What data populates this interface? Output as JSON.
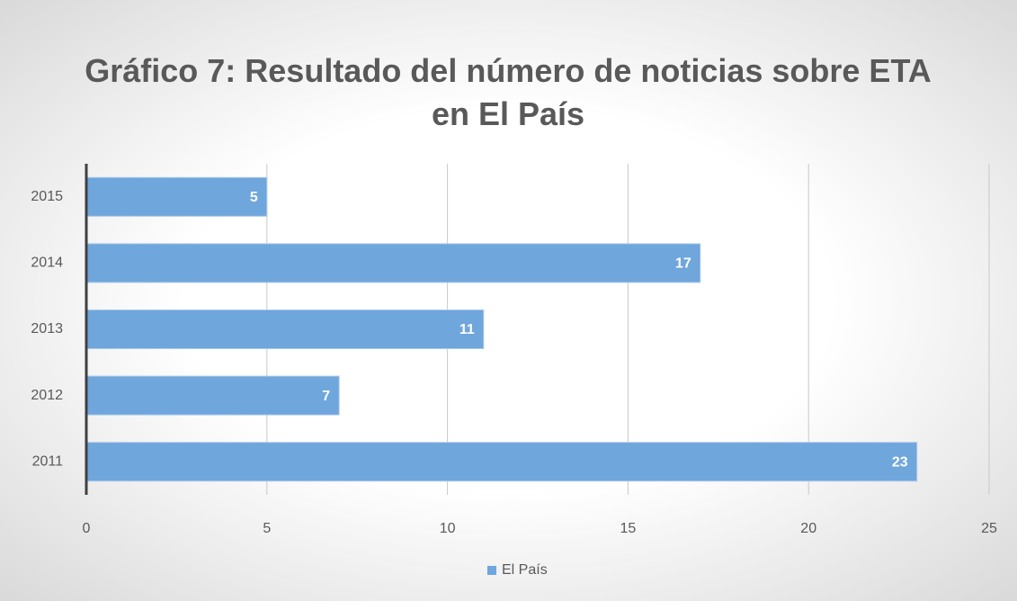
{
  "chart_data": {
    "type": "barh",
    "title": "Gráfico 7: Resultado del número de noticias sobre ETA en El País",
    "categories": [
      "2011",
      "2012",
      "2013",
      "2014",
      "2015"
    ],
    "series": [
      {
        "name": "El País",
        "color": "#6fa6dc",
        "values": [
          23,
          7,
          11,
          17,
          5
        ]
      }
    ],
    "xlim": [
      0,
      25
    ],
    "xticks": [
      0,
      5,
      10,
      15,
      20,
      25
    ],
    "grid": true,
    "legend": "bottom"
  }
}
